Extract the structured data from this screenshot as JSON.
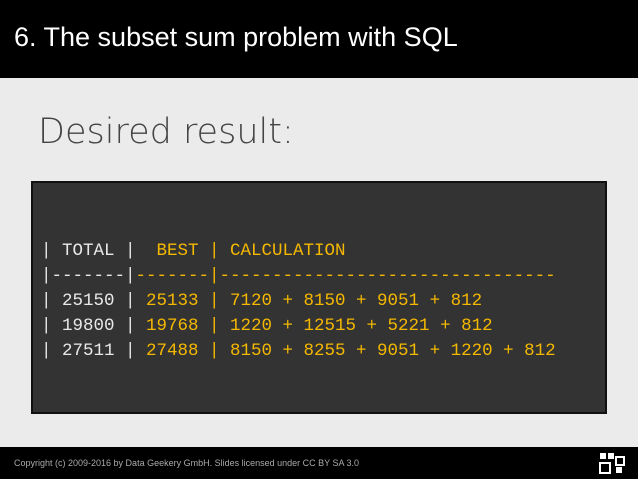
{
  "header": {
    "title": "6. The subset sum problem with SQL"
  },
  "heading": "Desired result:",
  "code": {
    "lines": [
      [
        "| TOTAL |",
        "  BEST | CALCULATION"
      ],
      [
        "|-------|",
        "-------|--------------------------------"
      ],
      [
        "| 25150 |",
        " 25133 | 7120 + 8150 + 9051 + 812"
      ],
      [
        "| 19800 |",
        " 19768 | 1220 + 12515 + 5221 + 812"
      ],
      [
        "| 27511 |",
        " 27488 | 8150 + 8255 + 9051 + 1220 + 812"
      ]
    ]
  },
  "footer": {
    "copyright": "Copyright (c) 2009-2016 by Data Geekery GmbH. Slides licensed under CC BY SA 3.0"
  }
}
